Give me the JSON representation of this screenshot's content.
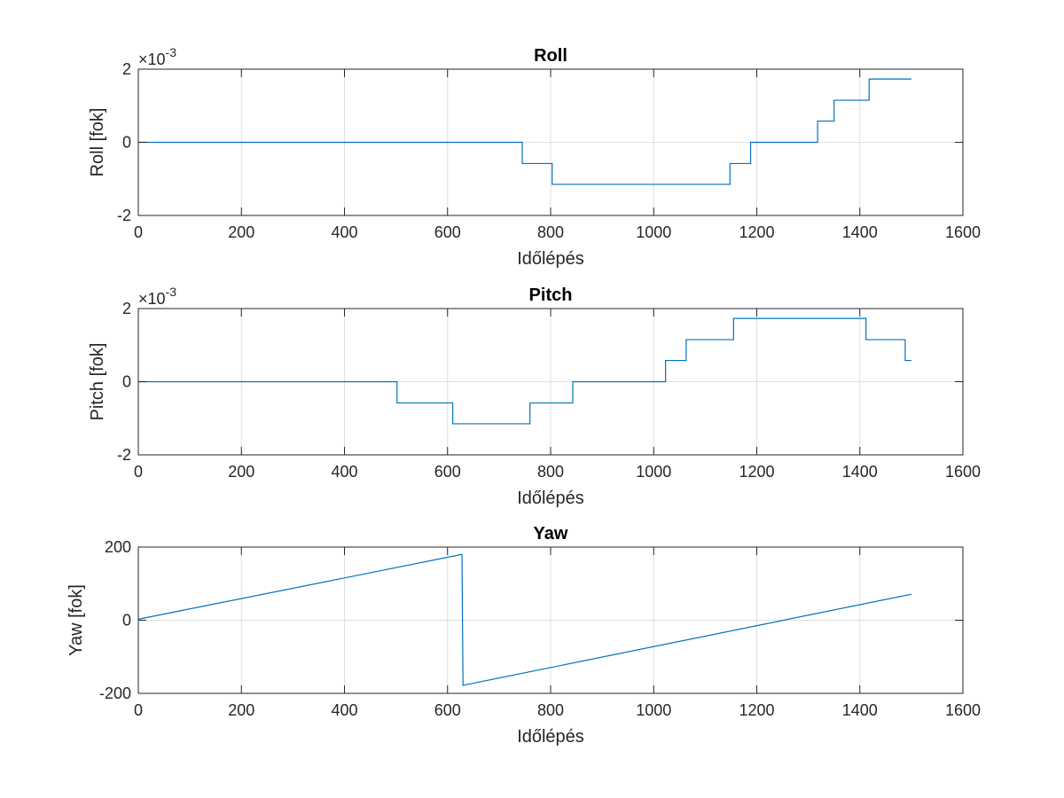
{
  "figure": {
    "background": "#ffffff",
    "series_color": "#0072BD",
    "grid_color": "#dfdfdf"
  },
  "chart_data": [
    {
      "type": "line",
      "title": "Roll",
      "xlabel": "Időlépés",
      "ylabel": "Roll [fok]",
      "xlim": [
        0,
        1600
      ],
      "ylim": [
        -0.002,
        0.002
      ],
      "xticks": [
        0,
        200,
        400,
        600,
        800,
        1000,
        1200,
        1400,
        1600
      ],
      "xtick_labels": [
        "0",
        "200",
        "400",
        "600",
        "800",
        "1000",
        "1200",
        "1400",
        "1600"
      ],
      "yticks": [
        -0.002,
        0,
        0.002
      ],
      "ytick_labels": [
        "-2",
        "0",
        "2"
      ],
      "exponent_label": "×10⁻³",
      "grid": true,
      "series": [
        {
          "x": [
            1,
            745,
            745,
            803,
            803,
            1148,
            1148,
            1188,
            1188,
            1318,
            1318,
            1350,
            1350,
            1418,
            1418,
            1500
          ],
          "y": [
            0,
            0,
            -0.00058,
            -0.00058,
            -0.00115,
            -0.00115,
            -0.00058,
            -0.00058,
            0,
            0,
            0.00058,
            0.00058,
            0.00115,
            0.00115,
            0.00173,
            0.00173
          ]
        }
      ]
    },
    {
      "type": "line",
      "title": "Pitch",
      "xlabel": "Időlépés",
      "ylabel": "Pitch [fok]",
      "xlim": [
        0,
        1600
      ],
      "ylim": [
        -0.002,
        0.002
      ],
      "xticks": [
        0,
        200,
        400,
        600,
        800,
        1000,
        1200,
        1400,
        1600
      ],
      "xtick_labels": [
        "0",
        "200",
        "400",
        "600",
        "800",
        "1000",
        "1200",
        "1400",
        "1600"
      ],
      "yticks": [
        -0.002,
        0,
        0.002
      ],
      "ytick_labels": [
        "-2",
        "0",
        "2"
      ],
      "exponent_label": "×10⁻³",
      "grid": true,
      "series": [
        {
          "x": [
            1,
            502,
            502,
            610,
            610,
            760,
            760,
            843,
            843,
            1023,
            1023,
            1063,
            1063,
            1155,
            1155,
            1412,
            1412,
            1488,
            1488,
            1500
          ],
          "y": [
            0,
            0,
            -0.00058,
            -0.00058,
            -0.00115,
            -0.00115,
            -0.00058,
            -0.00058,
            0,
            0,
            0.00058,
            0.00058,
            0.00115,
            0.00115,
            0.00173,
            0.00173,
            0.00115,
            0.00115,
            0.00058,
            0.00058
          ]
        }
      ]
    },
    {
      "type": "line",
      "title": "Yaw",
      "xlabel": "Időlépés",
      "ylabel": "Yaw [fok]",
      "xlim": [
        0,
        1600
      ],
      "ylim": [
        -200,
        200
      ],
      "xticks": [
        0,
        200,
        400,
        600,
        800,
        1000,
        1200,
        1400,
        1600
      ],
      "xtick_labels": [
        "0",
        "200",
        "400",
        "600",
        "800",
        "1000",
        "1200",
        "1400",
        "1600"
      ],
      "yticks": [
        -200,
        0,
        200
      ],
      "ytick_labels": [
        "-200",
        "0",
        "200"
      ],
      "exponent_label": "",
      "grid": true,
      "series": [
        {
          "x": [
            1,
            628,
            628,
            630,
            1500
          ],
          "y": [
            3,
            180,
            178,
            -178,
            71
          ]
        }
      ]
    }
  ]
}
